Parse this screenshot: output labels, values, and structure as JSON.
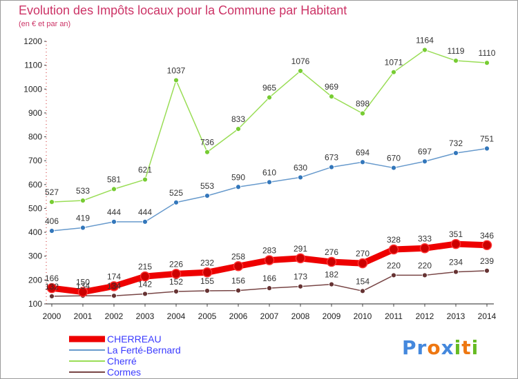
{
  "chart_data": {
    "type": "line",
    "title": "Evolution des Impôts locaux pour la Commune par Habitant",
    "subtitle": "(en € et par an)",
    "xlabel": "",
    "ylabel": "",
    "categories": [
      "2000",
      "2001",
      "2002",
      "2003",
      "2004",
      "2005",
      "2006",
      "2007",
      "2008",
      "2009",
      "2010",
      "2011",
      "2012",
      "2013",
      "2014"
    ],
    "ylim": [
      100,
      1200
    ],
    "yticks": [
      "100",
      "200",
      "300",
      "400",
      "500",
      "600",
      "700",
      "800",
      "900",
      "1000",
      "1100",
      "1200"
    ],
    "grid": false,
    "legend_position": "bottom-left",
    "series": [
      {
        "name": "CHERREAU",
        "color": "#ee0000",
        "point_color": "#cc0000",
        "thick": true,
        "values": [
          166,
          150,
          174,
          215,
          226,
          232,
          258,
          283,
          291,
          276,
          270,
          328,
          333,
          351,
          346
        ],
        "labels": [
          "166",
          "150",
          "174",
          "215",
          "226",
          "232",
          "258",
          "283",
          "291",
          "276",
          "270",
          "328",
          "333",
          "351",
          "346"
        ]
      },
      {
        "name": "La Ferté-Bernard",
        "color": "#6699cc",
        "point_color": "#3377bb",
        "thick": false,
        "values": [
          406,
          419,
          444,
          444,
          525,
          553,
          590,
          610,
          630,
          673,
          694,
          670,
          697,
          732,
          751
        ],
        "labels": [
          "406",
          "419",
          "444",
          "444",
          "525",
          "553",
          "590",
          "610",
          "630",
          "673",
          "694",
          "670",
          "697",
          "732",
          "751"
        ]
      },
      {
        "name": "Cherré",
        "color": "#99dd55",
        "point_color": "#77cc33",
        "thick": false,
        "values": [
          527,
          533,
          581,
          621,
          1037,
          736,
          833,
          965,
          1076,
          969,
          898,
          1071,
          1164,
          1119,
          1110
        ],
        "labels": [
          "527",
          "533",
          "581",
          "621",
          "1037",
          "736",
          "833",
          "965",
          "1076",
          "969",
          "898",
          "1071",
          "1164",
          "1119",
          "1110"
        ]
      },
      {
        "name": "Cormes",
        "color": "#774444",
        "point_color": "#663333",
        "thick": false,
        "values": [
          132,
          134,
          134,
          142,
          152,
          155,
          156,
          166,
          173,
          182,
          154,
          220,
          220,
          234,
          239
        ],
        "labels": [
          "132",
          "134",
          "134",
          "142",
          "152",
          "155",
          "156",
          "166",
          "173",
          "182",
          "154",
          "220",
          "220",
          "234",
          "239"
        ]
      }
    ]
  },
  "logo": {
    "text": "Proxiti",
    "letters": [
      "P",
      "r",
      "o",
      "x",
      "i",
      "t",
      "i"
    ],
    "colors": [
      "#4488dd",
      "#4488dd",
      "#ee7711",
      "#4488dd",
      "#66bb22",
      "#ee7711",
      "#66bb22"
    ]
  }
}
